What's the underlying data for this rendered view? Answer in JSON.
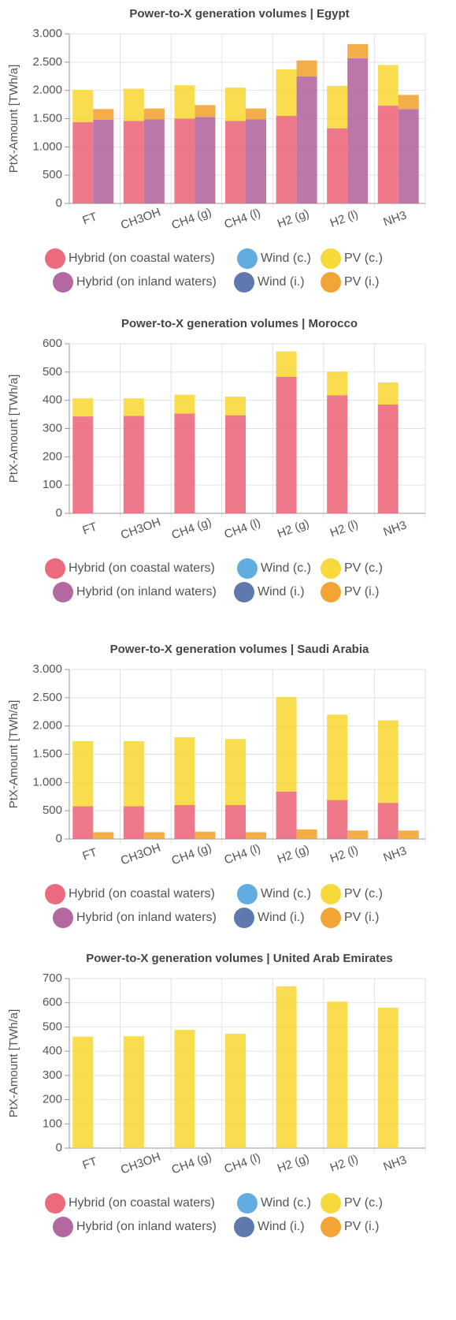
{
  "chart_data": [
    {
      "type": "bar",
      "title": "Power-to-X generation volumes | Egypt",
      "y_label": "PtX-Amount [TWh/a]",
      "categories": [
        "FT",
        "CH3OH",
        "CH4 (g)",
        "CH4 (l)",
        "H2 (g)",
        "H2 (l)",
        "NH3"
      ],
      "ylim": [
        0,
        3000
      ],
      "yticks": [
        0,
        500,
        {
          "value": 1000,
          "label": "1.000"
        },
        {
          "value": 1500,
          "label": "1.500"
        },
        {
          "value": 2000,
          "label": "2.000"
        },
        {
          "value": 2500,
          "label": "2.500"
        },
        {
          "value": 3000,
          "label": "3.000"
        }
      ],
      "series": [
        {
          "name": "Hybrid (on coastal waters)",
          "color": "#ec6a7e",
          "values": [
            1440,
            1460,
            1500,
            1460,
            1550,
            1330,
            1730
          ]
        },
        {
          "name": "Hybrid (on inland waters)",
          "color": "#b3689f",
          "values": [
            1480,
            1490,
            1530,
            1490,
            2250,
            2570,
            1670
          ]
        },
        {
          "name": "Wind (c.)",
          "color": "#62ace0",
          "values": [
            0,
            0,
            0,
            0,
            0,
            0,
            0
          ]
        },
        {
          "name": "Wind (i.)",
          "color": "#5f78ae",
          "values": [
            0,
            0,
            0,
            0,
            0,
            0,
            0
          ]
        },
        {
          "name": "PV (c.)",
          "color": "#f8d93c",
          "values": [
            570,
            570,
            590,
            590,
            820,
            750,
            720
          ]
        },
        {
          "name": "PV (i.)",
          "color": "#f2a435",
          "values": [
            190,
            190,
            210,
            190,
            280,
            250,
            250
          ]
        }
      ]
    },
    {
      "type": "bar",
      "title": "Power-to-X generation volumes | Morocco",
      "y_label": "PtX-Amount [TWh/a]",
      "categories": [
        "FT",
        "CH3OH",
        "CH4 (g)",
        "CH4 (l)",
        "H2 (g)",
        "H2 (l)",
        "NH3"
      ],
      "ylim": [
        0,
        600
      ],
      "yticks": [
        0,
        100,
        200,
        300,
        400,
        500,
        600
      ],
      "series": [
        {
          "name": "Hybrid (on coastal waters)",
          "color": "#ec6a7e",
          "values": [
            343,
            345,
            353,
            347,
            483,
            418,
            385
          ]
        },
        {
          "name": "Hybrid (on inland waters)",
          "color": "#b3689f",
          "values": [
            0,
            0,
            0,
            0,
            0,
            0,
            0
          ]
        },
        {
          "name": "Wind (c.)",
          "color": "#62ace0",
          "values": [
            0,
            0,
            0,
            0,
            0,
            0,
            0
          ]
        },
        {
          "name": "Wind (i.)",
          "color": "#5f78ae",
          "values": [
            0,
            0,
            0,
            0,
            0,
            0,
            0
          ]
        },
        {
          "name": "PV (c.)",
          "color": "#f8d93c",
          "values": [
            64,
            62,
            67,
            66,
            90,
            84,
            78
          ]
        },
        {
          "name": "PV (i.)",
          "color": "#f2a435",
          "values": [
            0,
            0,
            0,
            0,
            0,
            0,
            0
          ]
        }
      ]
    },
    {
      "type": "bar",
      "title": "Power-to-X generation volumes | Saudi Arabia",
      "y_label": "PtX-Amount [TWh/a]",
      "categories": [
        "FT",
        "CH3OH",
        "CH4 (g)",
        "CH4 (l)",
        "H2 (g)",
        "H2 (l)",
        "NH3"
      ],
      "ylim": [
        0,
        3000
      ],
      "yticks": [
        0,
        500,
        {
          "value": 1000,
          "label": "1.000"
        },
        {
          "value": 1500,
          "label": "1.500"
        },
        {
          "value": 2000,
          "label": "2.000"
        },
        {
          "value": 2500,
          "label": "2.500"
        },
        {
          "value": 3000,
          "label": "3.000"
        }
      ],
      "series": [
        {
          "name": "Hybrid (on coastal waters)",
          "color": "#ec6a7e",
          "values": [
            580,
            580,
            600,
            600,
            840,
            690,
            640
          ]
        },
        {
          "name": "Hybrid (on inland waters)",
          "color": "#b3689f",
          "values": [
            0,
            0,
            0,
            0,
            0,
            0,
            0
          ]
        },
        {
          "name": "Wind (c.)",
          "color": "#62ace0",
          "values": [
            0,
            0,
            0,
            0,
            0,
            0,
            0
          ]
        },
        {
          "name": "Wind (i.)",
          "color": "#5f78ae",
          "values": [
            0,
            0,
            0,
            0,
            0,
            0,
            0
          ]
        },
        {
          "name": "PV (c.)",
          "color": "#f8d93c",
          "values": [
            1150,
            1150,
            1200,
            1170,
            1670,
            1510,
            1460
          ]
        },
        {
          "name": "PV (i.)",
          "color": "#f2a435",
          "values": [
            120,
            120,
            130,
            120,
            170,
            150,
            150
          ]
        }
      ]
    },
    {
      "type": "bar",
      "title": "Power-to-X generation volumes | United Arab Emirates",
      "y_label": "PtX-Amount [TWh/a]",
      "categories": [
        "FT",
        "CH3OH",
        "CH4 (g)",
        "CH4 (l)",
        "H2 (g)",
        "H2 (l)",
        "NH3"
      ],
      "ylim": [
        0,
        700
      ],
      "yticks": [
        0,
        100,
        200,
        300,
        400,
        500,
        600,
        700
      ],
      "series": [
        {
          "name": "Hybrid (on coastal waters)",
          "color": "#ec6a7e",
          "values": [
            0,
            0,
            0,
            0,
            0,
            0,
            0
          ]
        },
        {
          "name": "Hybrid (on inland waters)",
          "color": "#b3689f",
          "values": [
            0,
            0,
            0,
            0,
            0,
            0,
            0
          ]
        },
        {
          "name": "Wind (c.)",
          "color": "#62ace0",
          "values": [
            0,
            0,
            0,
            0,
            0,
            0,
            0
          ]
        },
        {
          "name": "Wind (i.)",
          "color": "#5f78ae",
          "values": [
            0,
            0,
            0,
            0,
            0,
            0,
            0
          ]
        },
        {
          "name": "PV (c.)",
          "color": "#f8d93c",
          "values": [
            460,
            462,
            488,
            472,
            668,
            605,
            580
          ]
        },
        {
          "name": "PV (i.)",
          "color": "#f2a435",
          "values": [
            0,
            0,
            0,
            0,
            0,
            0,
            0
          ]
        }
      ]
    }
  ]
}
